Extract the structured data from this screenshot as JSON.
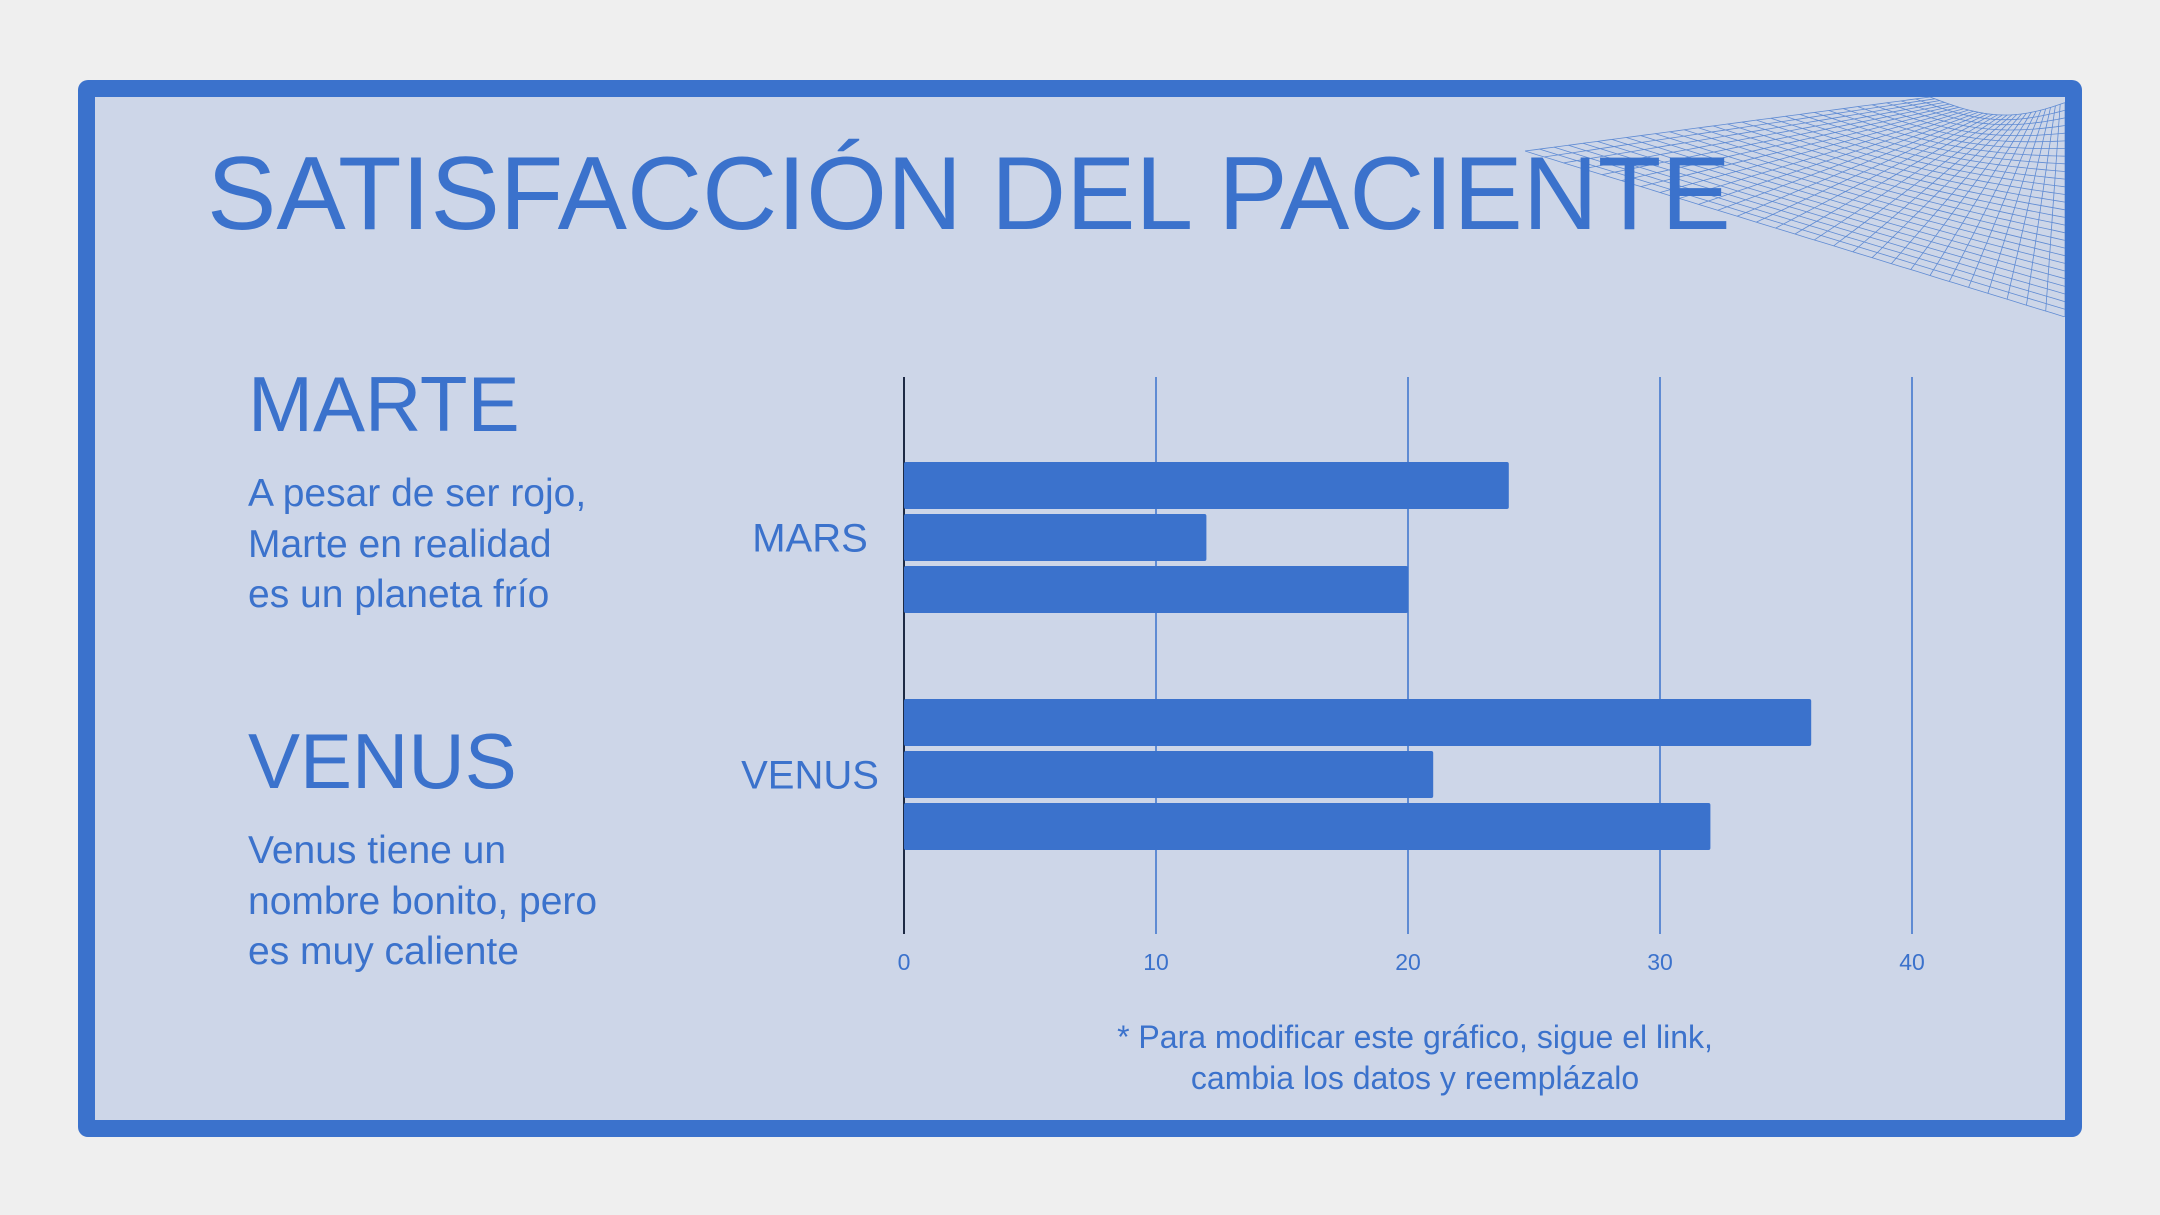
{
  "title": "SATISFACCIÓN DEL PACIENTE",
  "sections": [
    {
      "heading": "MARTE",
      "text": [
        "A pesar de ser rojo,",
        "Marte en realidad",
        "es un planeta frío"
      ]
    },
    {
      "heading": "VENUS",
      "text": [
        "Venus tiene un",
        "nombre bonito, pero",
        "es muy caliente"
      ]
    }
  ],
  "note": [
    "* Para modificar este gráfico, sigue el link,",
    "cambia los datos y reemplázalo"
  ],
  "colors": {
    "accent": "#3b72cc",
    "background": "#cdd6e8",
    "page": "#efefef"
  },
  "chart_data": {
    "type": "bar",
    "orientation": "horizontal",
    "categories": [
      "MARS",
      "VENUS"
    ],
    "values": [
      [
        24,
        12,
        20
      ],
      [
        36,
        21,
        32
      ]
    ],
    "xlim": [
      0,
      40
    ],
    "xticks": [
      0,
      10,
      20,
      30,
      40
    ],
    "grid": true,
    "color": "#3b72cc"
  }
}
